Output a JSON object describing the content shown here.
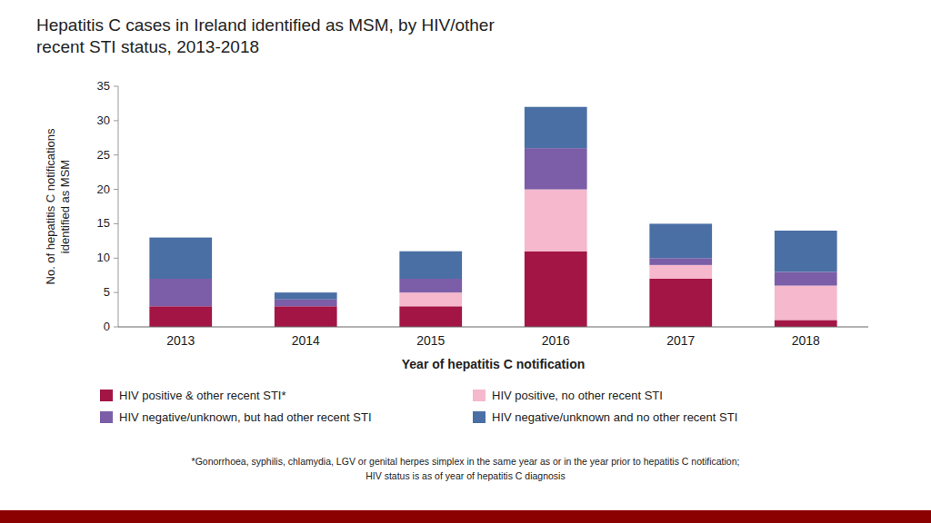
{
  "chart_data": {
    "type": "bar",
    "stacked": true,
    "title": "Hepatitis C cases in Ireland identified as MSM, by HIV/other\nrecent STI status, 2013-2018",
    "x_label": "Year of hepatitis C notification",
    "y_label": "No. of hepatitis C notifications\nidentified as MSM",
    "categories": [
      "2013",
      "2014",
      "2015",
      "2016",
      "2017",
      "2018"
    ],
    "series": [
      {
        "name": "HIV positive & other recent STI*",
        "color": "#A31545",
        "values": [
          3,
          3,
          3,
          11,
          7,
          1
        ]
      },
      {
        "name": "HIV positive, no other recent STI",
        "color": "#F5B8CC",
        "values": [
          0,
          0,
          2,
          9,
          2,
          5
        ]
      },
      {
        "name": "HIV negative/unknown, but had other recent STI",
        "color": "#7B5EA7",
        "values": [
          4,
          1,
          2,
          6,
          1,
          2
        ]
      },
      {
        "name": "HIV negative/unknown and no other recent STI",
        "color": "#4A6FA5",
        "values": [
          6,
          1,
          4,
          6,
          5,
          6
        ]
      }
    ],
    "ylim": [
      0,
      35
    ],
    "yticks": [
      0,
      5,
      10,
      15,
      20,
      25,
      30,
      35
    ],
    "grid": false,
    "legend": "bottom",
    "annotations": [
      "*Gonorrhoea, syphilis, chlamydia, LGV or genital herpes simplex in the same year as or in the year prior to hepatitis C notification;",
      "HIV status is as of year of hepatitis C diagnosis"
    ]
  }
}
